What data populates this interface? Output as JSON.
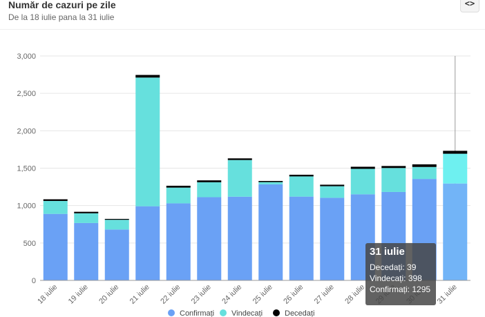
{
  "header": {
    "title": "Număr de cazuri pe zile",
    "subtitle": "De la 18 iulie pana la 31 iulie",
    "embed_icon": "<>"
  },
  "colors": {
    "confirmati": "#6aa1f5",
    "vindecati": "#66e0dd",
    "decedati": "#000000",
    "highlight_confirmati": "#72b4f7",
    "highlight_vindecati": "#6ef0f0"
  },
  "chart_data": {
    "type": "bar",
    "stacked": true,
    "categories": [
      "18 iulie",
      "19 iulie",
      "20 iulie",
      "21 iulie",
      "22 iulie",
      "23 iulie",
      "24 iulie",
      "25 iulie",
      "26 iulie",
      "27 iulie",
      "28 iulie",
      "29 iulie",
      "30 iulie",
      "31 iulie"
    ],
    "series": [
      {
        "name": "Confirmați",
        "values": [
          889,
          767,
          680,
          991,
          1030,
          1112,
          1119,
          1284,
          1120,
          1104,
          1151,
          1182,
          1356,
          1295
        ]
      },
      {
        "name": "Vindecați",
        "values": [
          173,
          130,
          130,
          1720,
          210,
          200,
          490,
          30,
          270,
          155,
          340,
          320,
          160,
          398
        ]
      },
      {
        "name": "Decedați",
        "values": [
          22,
          20,
          12,
          35,
          25,
          25,
          22,
          15,
          22,
          20,
          28,
          27,
          35,
          39
        ]
      }
    ],
    "ylim": [
      0,
      3000
    ],
    "yticks": [
      "0",
      "500",
      "1,000",
      "1,500",
      "2,000",
      "2,500",
      "3,000"
    ],
    "ytick_values": [
      0,
      500,
      1000,
      1500,
      2000,
      2500,
      3000
    ],
    "grid": true,
    "legend_position": "bottom",
    "highlighted_category": "31 iulie"
  },
  "tooltip": {
    "title": "31 iulie",
    "rows": [
      "Decedați: 39",
      "Vindecați: 398",
      "Confirmați: 1295"
    ]
  }
}
